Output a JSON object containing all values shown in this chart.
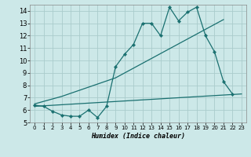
{
  "title": "",
  "xlabel": "Humidex (Indice chaleur)",
  "ylabel": "",
  "bg_color": "#cce8e8",
  "grid_color": "#aacccc",
  "line_color": "#1a7070",
  "xlim": [
    -0.5,
    23.5
  ],
  "ylim": [
    5.0,
    14.5
  ],
  "xticks": [
    0,
    1,
    2,
    3,
    4,
    5,
    6,
    7,
    8,
    9,
    10,
    11,
    12,
    13,
    14,
    15,
    16,
    17,
    18,
    19,
    20,
    21,
    22,
    23
  ],
  "yticks": [
    5,
    6,
    7,
    8,
    9,
    10,
    11,
    12,
    13,
    14
  ],
  "series1_x": [
    0,
    1,
    2,
    3,
    4,
    5,
    6,
    7,
    8,
    9,
    10,
    11,
    12,
    13,
    14,
    15,
    16,
    17,
    18,
    19,
    20,
    21,
    22
  ],
  "series1_y": [
    6.4,
    6.3,
    5.9,
    5.6,
    5.5,
    5.5,
    6.0,
    5.4,
    6.3,
    9.5,
    10.5,
    11.3,
    13.0,
    13.0,
    12.0,
    14.3,
    13.2,
    13.9,
    14.3,
    12.0,
    10.7,
    8.3,
    7.3
  ],
  "series2_x": [
    0,
    3,
    9,
    21
  ],
  "series2_y": [
    6.5,
    7.1,
    8.6,
    13.3
  ],
  "series3_x": [
    0,
    23
  ],
  "series3_y": [
    6.3,
    7.3
  ],
  "xlabel_fontsize": 6,
  "tick_fontsize_x": 5,
  "tick_fontsize_y": 6
}
